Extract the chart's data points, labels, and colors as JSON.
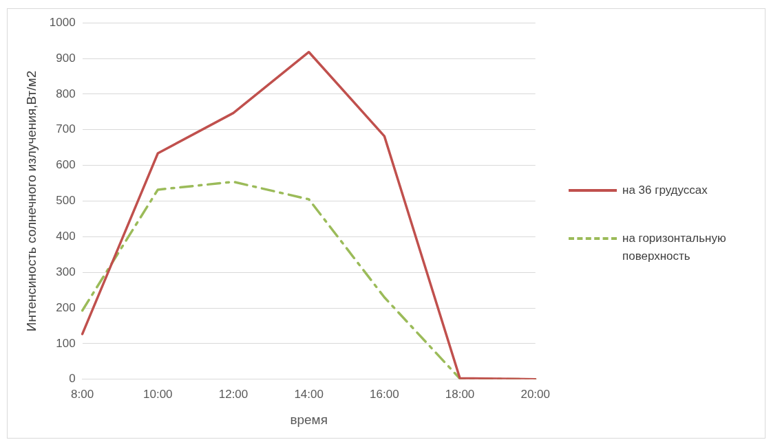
{
  "chart_data": {
    "type": "line",
    "xlabel": "время",
    "ylabel": "Интенсиность солнечного излучения,Вт/м2",
    "categories": [
      "8:00",
      "10:00",
      "12:00",
      "14:00",
      "16:00",
      "18:00",
      "20:00"
    ],
    "series": [
      {
        "name": "на 36 грудуссах",
        "color": "#c0504d",
        "values": [
          127,
          634,
          747,
          918,
          682,
          3,
          0
        ],
        "line_style": "solid"
      },
      {
        "name": "на горизонтальную поверхность",
        "color": "#9bbb59",
        "values": [
          193,
          532,
          554,
          505,
          230,
          2,
          0
        ],
        "line_style": "dashed"
      }
    ],
    "ylim": [
      0,
      1000
    ],
    "yticks": [
      0,
      100,
      200,
      300,
      400,
      500,
      600,
      700,
      800,
      900,
      1000
    ],
    "grid": "y",
    "legend": "right",
    "marker": "none"
  }
}
